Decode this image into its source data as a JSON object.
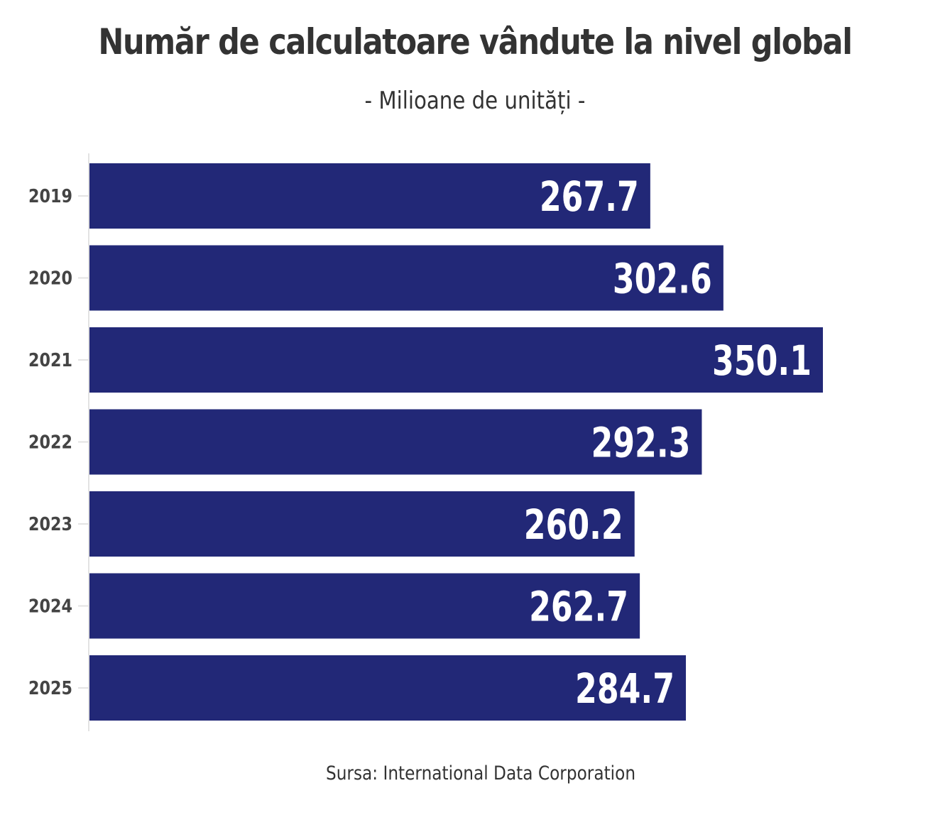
{
  "title": "Număr de calculatoare vândute la nivel global",
  "subtitle": "- Milioane de unități -",
  "caption": "Sursa: International Data Corporation",
  "colors": {
    "bar": "#222877",
    "axis": "#e3e3e3",
    "text": "#333333",
    "label": "#ffffff"
  },
  "chart_data": {
    "type": "bar",
    "orientation": "horizontal",
    "categories": [
      "2019",
      "2020",
      "2021",
      "2022",
      "2023",
      "2024",
      "2025"
    ],
    "values": [
      267.7,
      302.6,
      350.1,
      292.3,
      260.2,
      262.7,
      284.7
    ],
    "data_labels": [
      "267.7",
      "302.6",
      "350.1",
      "292.3",
      "260.2",
      "262.7",
      "284.7"
    ],
    "xlim": [
      0,
      350.1
    ],
    "grid": false,
    "legend": "none"
  }
}
